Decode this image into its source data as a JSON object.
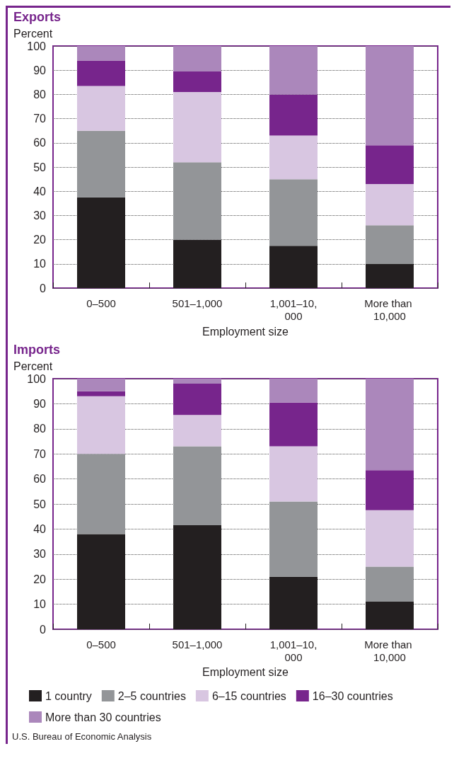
{
  "chart_data": [
    {
      "type": "bar",
      "title": "Exports",
      "ylabel": "Percent",
      "xlabel": "Employment size",
      "categories": [
        "0–500",
        "501–1,000",
        "1,001–10,000",
        "More than 10,000"
      ],
      "stacked": true,
      "ylim": [
        0,
        100
      ],
      "yticks": [
        0,
        10,
        20,
        30,
        40,
        50,
        60,
        70,
        80,
        90,
        100
      ],
      "grid": "y",
      "legend": false,
      "series": [
        {
          "color": "#231f20",
          "values": [
            37.5,
            20,
            17.5,
            10
          ]
        },
        {
          "color": "#939598",
          "values": [
            27.5,
            32,
            27.5,
            16
          ]
        },
        {
          "color": "#d8c6e1",
          "values": [
            18.5,
            29,
            18,
            17
          ]
        },
        {
          "color": "#77258c",
          "values": [
            10.5,
            8.5,
            17,
            16
          ]
        },
        {
          "color": "#ab87bb",
          "values": [
            6,
            10.5,
            20,
            41
          ]
        }
      ]
    },
    {
      "type": "bar",
      "title": "Imports",
      "ylabel": "Percent",
      "xlabel": "Employment size",
      "categories": [
        "0–500",
        "501–1,000",
        "1,001–10,000",
        "More than 10,000"
      ],
      "stacked": true,
      "ylim": [
        0,
        100
      ],
      "yticks": [
        0,
        10,
        20,
        30,
        40,
        50,
        60,
        70,
        80,
        90,
        100
      ],
      "grid": "y",
      "legend": "bottom",
      "annotations": [
        "U.S. Bureau of Economic Analysis"
      ],
      "series": [
        {
          "name": "1 country",
          "color": "#231f20",
          "values": [
            38,
            41.5,
            21,
            11
          ]
        },
        {
          "name": "2–5 countries",
          "color": "#939598",
          "values": [
            32,
            31.5,
            30,
            14
          ]
        },
        {
          "name": "6–15 countries",
          "color": "#d8c6e1",
          "values": [
            23,
            12.5,
            22,
            22.5
          ]
        },
        {
          "name": "16–30 countries",
          "color": "#77258c",
          "values": [
            2,
            12.5,
            17.5,
            16
          ]
        },
        {
          "name": "More than 30 countries",
          "color": "#ab87bb",
          "values": [
            5,
            2,
            9.5,
            36.5
          ]
        }
      ]
    }
  ]
}
